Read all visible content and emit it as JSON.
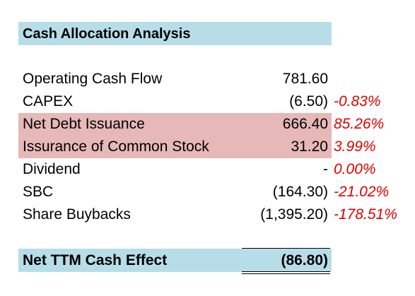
{
  "title": "Cash Allocation Analysis",
  "rows": [
    {
      "label": "Operating Cash Flow",
      "value": "781.60",
      "pct": ""
    },
    {
      "label": "CAPEX",
      "value": "(6.50)",
      "pct": "-0.83%"
    },
    {
      "label": "Net Debt Issuance",
      "value": "666.40",
      "pct": "85.26%"
    },
    {
      "label": "Issurance of Common Stock",
      "value": "31.20",
      "pct": "3.99%"
    },
    {
      "label": "Dividend",
      "value": "-",
      "pct": "0.00%"
    },
    {
      "label": "SBC",
      "value": "(164.30)",
      "pct": "-21.02%"
    },
    {
      "label": "Share Buybacks",
      "value": "(1,395.20)",
      "pct": "-178.51%"
    }
  ],
  "total": {
    "label": "Net TTM Cash Effect",
    "value": "(86.80)"
  },
  "colors": {
    "header_fill": "#b7dee8",
    "highlight_fill": "#e6b8b7",
    "percent_text": "#e00000"
  }
}
